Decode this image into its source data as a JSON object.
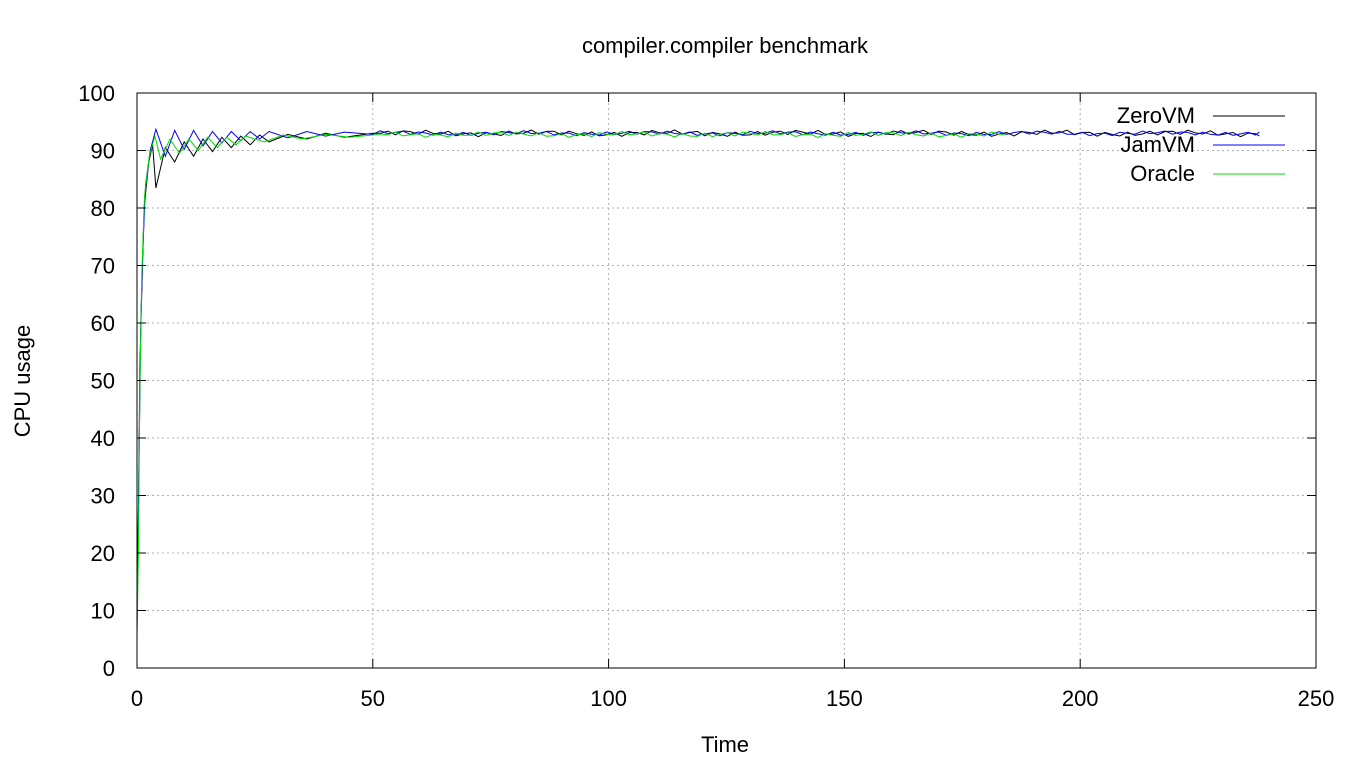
{
  "chart_data": {
    "type": "line",
    "title": "compiler.compiler benchmark",
    "xlabel": "Time",
    "ylabel": "CPU usage",
    "xlim": [
      0,
      250
    ],
    "ylim": [
      0,
      100
    ],
    "xticks": [
      0,
      50,
      100,
      150,
      200,
      250
    ],
    "yticks": [
      0,
      10,
      20,
      30,
      40,
      50,
      60,
      70,
      80,
      90,
      100
    ],
    "grid": true,
    "legend_position": "top-right",
    "series": [
      {
        "name": "ZeroVM",
        "color": "#000000",
        "end_x": 238,
        "start_values": [
          [
            0,
            7
          ],
          [
            0.3,
            26
          ],
          [
            0.6,
            52
          ],
          [
            1,
            65
          ],
          [
            1.5,
            80
          ],
          [
            2.5,
            88
          ],
          [
            3.3,
            91
          ],
          [
            4,
            83.5
          ],
          [
            6,
            90.5
          ],
          [
            8,
            88
          ],
          [
            10,
            91.5
          ],
          [
            12,
            89
          ],
          [
            14,
            92
          ],
          [
            16,
            89.8
          ],
          [
            18,
            92.3
          ],
          [
            20,
            90.5
          ],
          [
            22,
            92.5
          ],
          [
            24,
            91
          ],
          [
            26,
            92.7
          ],
          [
            28,
            91.5
          ],
          [
            32,
            92.8
          ],
          [
            36,
            92
          ],
          [
            40,
            93
          ],
          [
            44,
            92.3
          ],
          [
            50,
            93
          ]
        ],
        "steady_value": 93,
        "steady_noise": 0.4
      },
      {
        "name": "JamVM",
        "color": "#0000ff",
        "end_x": 238,
        "start_values": [
          [
            0,
            7
          ],
          [
            0.4,
            34
          ],
          [
            0.8,
            60
          ],
          [
            1.2,
            72
          ],
          [
            1.8,
            84
          ],
          [
            2.8,
            90
          ],
          [
            4,
            93.7
          ],
          [
            6,
            89
          ],
          [
            8,
            93.5
          ],
          [
            10,
            90.2
          ],
          [
            12,
            93.5
          ],
          [
            14,
            90.8
          ],
          [
            16,
            93.3
          ],
          [
            18,
            91.3
          ],
          [
            20,
            93.3
          ],
          [
            22,
            91.7
          ],
          [
            24,
            93.3
          ],
          [
            26,
            92
          ],
          [
            28,
            93.3
          ],
          [
            32,
            92.2
          ],
          [
            36,
            93.3
          ],
          [
            40,
            92.5
          ],
          [
            44,
            93.2
          ],
          [
            50,
            92.8
          ]
        ],
        "steady_value": 93,
        "steady_noise": 0.3
      },
      {
        "name": "Oracle",
        "color": "#00dd00",
        "end_x": 184,
        "start_values": [
          [
            0,
            5
          ],
          [
            0.3,
            20
          ],
          [
            0.6,
            48
          ],
          [
            1,
            68
          ],
          [
            1.6,
            82
          ],
          [
            2.6,
            89
          ],
          [
            3.8,
            92.5
          ],
          [
            5,
            88.5
          ],
          [
            7,
            92
          ],
          [
            9,
            89.5
          ],
          [
            11,
            92
          ],
          [
            13,
            90
          ],
          [
            15,
            92.3
          ],
          [
            17,
            90.5
          ],
          [
            19,
            92.3
          ],
          [
            21,
            91
          ],
          [
            23,
            92.5
          ],
          [
            27,
            91.5
          ],
          [
            31,
            92.7
          ],
          [
            35,
            92
          ],
          [
            40,
            92.8
          ],
          [
            45,
            92.3
          ],
          [
            50,
            92.7
          ]
        ],
        "steady_value": 92.8,
        "steady_noise": 0.35
      }
    ]
  }
}
